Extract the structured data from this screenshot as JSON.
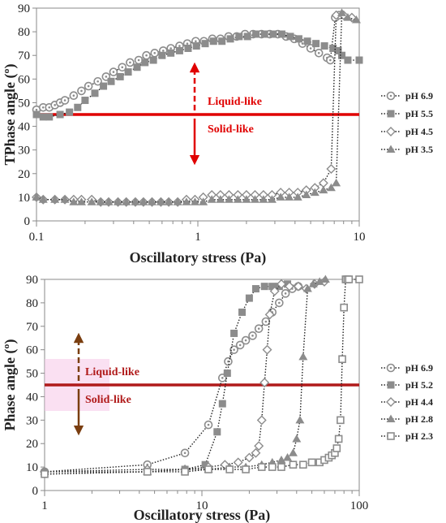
{
  "chart_data": [
    {
      "type": "scatter",
      "xscale": "log",
      "xlim": [
        0.1,
        10
      ],
      "ylim": [
        0,
        90
      ],
      "xticks": [
        "0.1",
        "1",
        "10"
      ],
      "yticks": [
        "0",
        "10",
        "20",
        "30",
        "40",
        "50",
        "60",
        "70",
        "80",
        "90"
      ],
      "xlabel": "Oscillatory stress (Pa)",
      "ylabel": "TPhase angle (º)",
      "reference_line": 45,
      "annotations": {
        "upper": "Liquid-like",
        "lower": "Solid-like"
      },
      "colors": {
        "line": "#e00000",
        "arrow": "#e00000",
        "annot": "#e00000",
        "marker": "#8c8c8c"
      },
      "legend_position": "right",
      "series": [
        {
          "name": "pH 6.9",
          "marker": "circle-dot",
          "x": [
            0.1,
            0.11,
            0.12,
            0.13,
            0.14,
            0.15,
            0.17,
            0.19,
            0.21,
            0.24,
            0.27,
            0.3,
            0.34,
            0.38,
            0.43,
            0.48,
            0.54,
            0.61,
            0.68,
            0.77,
            0.86,
            0.97,
            1.09,
            1.23,
            1.38,
            1.55,
            1.74,
            1.96,
            2.2,
            2.48,
            2.79,
            3.13,
            3.52,
            3.96,
            4.45,
            5.0,
            5.62,
            6.32,
            6.62,
            7.1,
            7.5
          ],
          "y": [
            47,
            48,
            48,
            49,
            50,
            51,
            53,
            55,
            57,
            59,
            61,
            63,
            65,
            67,
            68,
            70,
            71,
            72,
            73,
            74,
            75,
            76,
            76,
            77,
            77,
            78,
            78,
            79,
            79,
            79,
            79,
            79,
            78,
            77,
            75,
            73,
            71,
            69,
            68,
            86,
            87
          ]
        },
        {
          "name": "pH 5.5",
          "marker": "square",
          "x": [
            0.1,
            0.11,
            0.12,
            0.14,
            0.16,
            0.18,
            0.2,
            0.23,
            0.26,
            0.29,
            0.33,
            0.37,
            0.42,
            0.47,
            0.53,
            0.6,
            0.68,
            0.77,
            0.87,
            0.98,
            1.11,
            1.25,
            1.41,
            1.59,
            1.8,
            2.03,
            2.29,
            2.59,
            2.93,
            3.31,
            3.74,
            4.22,
            4.77,
            5.39,
            6.09,
            6.88,
            7.4,
            7.8,
            8.5,
            10
          ],
          "y": [
            45,
            44,
            44,
            45,
            46,
            48,
            51,
            54,
            57,
            59,
            61,
            63,
            65,
            67,
            68,
            70,
            71,
            72,
            73,
            74,
            75,
            76,
            76,
            77,
            78,
            78,
            79,
            79,
            79,
            79,
            78,
            77,
            76,
            75,
            74,
            73,
            72,
            70,
            68,
            68
          ]
        },
        {
          "name": "pH 4.5",
          "marker": "diamond",
          "x": [
            0.1,
            0.11,
            0.13,
            0.15,
            0.17,
            0.19,
            0.22,
            0.25,
            0.28,
            0.32,
            0.36,
            0.41,
            0.46,
            0.52,
            0.59,
            0.66,
            0.75,
            0.85,
            0.96,
            1.08,
            1.22,
            1.38,
            1.56,
            1.77,
            2.0,
            2.26,
            2.55,
            2.88,
            3.26,
            3.68,
            4.16,
            4.7,
            5.31,
            6.0,
            6.7,
            7.2,
            8.0,
            9.0
          ],
          "y": [
            10,
            9,
            9,
            9,
            9,
            9,
            9,
            8,
            8,
            8,
            8,
            8,
            8,
            8,
            8,
            8,
            8,
            9,
            9,
            10,
            11,
            11,
            11,
            11,
            11,
            11,
            11,
            11,
            12,
            12,
            12,
            13,
            14,
            16,
            22,
            87,
            87,
            86
          ]
        },
        {
          "name": "pH 3.5",
          "marker": "triangle",
          "x": [
            0.1,
            0.11,
            0.13,
            0.15,
            0.17,
            0.19,
            0.22,
            0.25,
            0.28,
            0.32,
            0.36,
            0.41,
            0.46,
            0.52,
            0.59,
            0.66,
            0.75,
            0.85,
            0.96,
            1.08,
            1.22,
            1.38,
            1.56,
            1.77,
            2.0,
            2.26,
            2.55,
            2.88,
            3.26,
            3.68,
            4.16,
            4.7,
            5.31,
            6.0,
            6.7,
            7.2,
            7.8,
            8.5,
            9.6
          ],
          "y": [
            10,
            9,
            9,
            9,
            8,
            8,
            8,
            8,
            8,
            8,
            8,
            8,
            8,
            8,
            8,
            8,
            8,
            8,
            8,
            8,
            9,
            9,
            9,
            9,
            9,
            9,
            9,
            9,
            10,
            10,
            10,
            11,
            12,
            13,
            14,
            16,
            88,
            86,
            85
          ]
        }
      ]
    },
    {
      "type": "scatter",
      "xscale": "log",
      "xlim": [
        1,
        100
      ],
      "ylim": [
        0,
        90
      ],
      "xticks": [
        "1",
        "10",
        "100"
      ],
      "yticks": [
        "0",
        "10",
        "20",
        "30",
        "40",
        "50",
        "60",
        "70",
        "80",
        "90"
      ],
      "xlabel": "Oscillatory stress (Pa)",
      "ylabel": "Phase angle (º)",
      "reference_line": 45,
      "annotations": {
        "upper": "Liquid-like",
        "lower": "Solid-like"
      },
      "colors": {
        "line": "#b01a1a",
        "arrow": "#7a3e10",
        "annot": "#b01a1a",
        "glow": "#f5c6e8",
        "marker": "#8c8c8c"
      },
      "legend_position": "right",
      "series": [
        {
          "name": "pH 6.9",
          "marker": "circle-dot",
          "x": [
            1,
            4.5,
            7.8,
            11,
            13.5,
            14.7,
            16,
            17.5,
            19,
            21,
            23,
            25.5,
            28,
            31,
            34,
            37.5,
            41
          ],
          "y": [
            8,
            11,
            16,
            28,
            48,
            55,
            60,
            62,
            64,
            66,
            69,
            72,
            76,
            80,
            84,
            86,
            87
          ]
        },
        {
          "name": "pH 5.2",
          "marker": "square",
          "x": [
            1,
            4.5,
            7.8,
            10.5,
            12.5,
            13.5,
            14.5,
            16,
            18,
            20,
            22,
            25,
            28,
            31,
            35
          ],
          "y": [
            7,
            8,
            9,
            11,
            25,
            37,
            50,
            67,
            76,
            82,
            86,
            87,
            87,
            87,
            88
          ]
        },
        {
          "name": "pH 4.4",
          "marker": "diamond",
          "x": [
            1,
            4.5,
            7.8,
            11,
            14,
            17,
            20,
            22,
            23,
            24,
            25,
            26,
            27,
            29,
            32,
            36,
            41,
            46,
            52,
            60
          ],
          "y": [
            8,
            9,
            9,
            10,
            11,
            12,
            14,
            16,
            19,
            30,
            46,
            60,
            75,
            85,
            88,
            87,
            87,
            86,
            88,
            89
          ]
        },
        {
          "name": "pH 2.8",
          "marker": "triangle",
          "x": [
            1,
            4.5,
            7.8,
            11,
            15,
            19,
            24,
            28,
            32,
            35,
            38,
            40,
            42,
            44,
            47,
            51,
            56,
            61
          ],
          "y": [
            8,
            8,
            9,
            9,
            10,
            10,
            11,
            12,
            13,
            14,
            16,
            22,
            30,
            57,
            86,
            88,
            89,
            90
          ]
        },
        {
          "name": "pH 2.3",
          "marker": "square-open",
          "x": [
            1,
            4.5,
            7.8,
            11,
            15,
            19,
            24,
            28,
            32,
            38,
            44,
            50,
            56,
            60,
            64,
            67,
            70,
            72,
            74,
            76,
            78,
            80,
            82,
            84,
            86,
            100
          ],
          "y": [
            7,
            8,
            8,
            9,
            9,
            9,
            10,
            10,
            10,
            11,
            11,
            12,
            12,
            13,
            14,
            15,
            16,
            18,
            22,
            30,
            56,
            78,
            90,
            90,
            90,
            90
          ]
        }
      ]
    }
  ]
}
